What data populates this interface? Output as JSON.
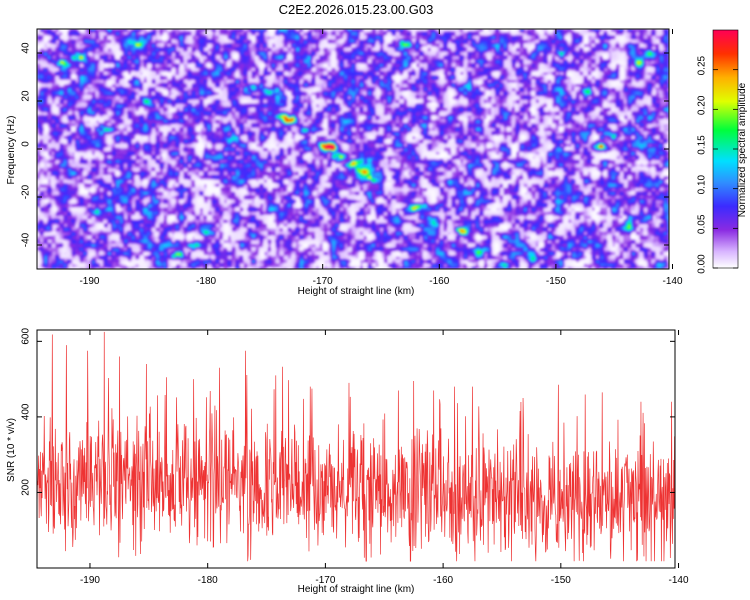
{
  "title": "C2E2.2026.015.23.00.G03",
  "chart_data": [
    {
      "type": "heatmap",
      "xlabel": "Height of straight line (km)",
      "ylabel": "Frequency (Hz)",
      "xlim": [
        -194.5,
        -140.3
      ],
      "ylim": [
        -50,
        50
      ],
      "xticks": [
        -190,
        -180,
        -170,
        -160,
        -150,
        -140
      ],
      "yticks": [
        -40,
        -20,
        0,
        20,
        40
      ],
      "colorbar": {
        "label": "Normalized spectral amplitude",
        "range": [
          0,
          0.3
        ],
        "ticks": [
          "0.00",
          "0.05",
          "0.10",
          "0.15",
          "0.20",
          "0.25"
        ]
      },
      "noise": {
        "floor": 0.03,
        "variation": 0.07
      },
      "features": [
        {
          "x": -192.5,
          "y": 36,
          "amp": 0.14
        },
        {
          "x": -191.0,
          "y": 38,
          "amp": 0.11
        },
        {
          "x": -188.5,
          "y": 8,
          "amp": 0.08
        },
        {
          "x": -186.0,
          "y": 44,
          "amp": 0.1
        },
        {
          "x": -185.0,
          "y": 20,
          "amp": 0.09
        },
        {
          "x": -184.0,
          "y": -48,
          "amp": 0.12
        },
        {
          "x": -182.5,
          "y": -44,
          "amp": 0.15
        },
        {
          "x": -181.0,
          "y": -40,
          "amp": 0.11
        },
        {
          "x": -180.0,
          "y": -34,
          "amp": 0.08
        },
        {
          "x": -178.0,
          "y": 4,
          "amp": 0.09
        },
        {
          "x": -176.0,
          "y": 26,
          "amp": 0.1
        },
        {
          "x": -174.5,
          "y": 24,
          "amp": 0.12
        },
        {
          "x": -173.5,
          "y": 14,
          "amp": 0.15
        },
        {
          "x": -172.8,
          "y": 12,
          "amp": 0.26
        },
        {
          "x": -171.5,
          "y": 8,
          "amp": 0.12
        },
        {
          "x": -170.0,
          "y": 2,
          "amp": 0.16
        },
        {
          "x": -169.3,
          "y": 1,
          "amp": 0.27
        },
        {
          "x": -168.5,
          "y": -3,
          "amp": 0.14
        },
        {
          "x": -167.5,
          "y": -6,
          "amp": 0.12
        },
        {
          "x": -166.5,
          "y": -9,
          "amp": 0.15
        },
        {
          "x": -165.8,
          "y": -12,
          "amp": 0.13
        },
        {
          "x": -166.0,
          "y": -4,
          "amp": 0.1
        },
        {
          "x": -162.0,
          "y": -24,
          "amp": 0.14
        },
        {
          "x": -160.5,
          "y": -30,
          "amp": 0.12
        },
        {
          "x": -158.0,
          "y": -34,
          "amp": 0.12
        },
        {
          "x": -156.5,
          "y": -42,
          "amp": 0.11
        },
        {
          "x": -154.5,
          "y": -48,
          "amp": 0.12
        },
        {
          "x": -152.0,
          "y": -46,
          "amp": 0.09
        },
        {
          "x": -147.5,
          "y": 24,
          "amp": 0.1
        },
        {
          "x": -146.3,
          "y": 1,
          "amp": 0.2
        },
        {
          "x": -145.0,
          "y": 6,
          "amp": 0.08
        },
        {
          "x": -143.0,
          "y": 36,
          "amp": 0.1
        },
        {
          "x": -142.0,
          "y": 40,
          "amp": 0.09
        },
        {
          "x": -149.5,
          "y": 40,
          "amp": 0.1
        },
        {
          "x": -163.0,
          "y": 44,
          "amp": 0.09
        },
        {
          "x": -158.0,
          "y": 26,
          "amp": 0.08
        },
        {
          "x": -189.5,
          "y": -26,
          "amp": 0.1
        },
        {
          "x": -176.0,
          "y": -36,
          "amp": 0.09
        },
        {
          "x": -141.0,
          "y": -48,
          "amp": 0.09
        },
        {
          "x": -144.0,
          "y": -32,
          "amp": 0.1
        }
      ]
    },
    {
      "type": "line",
      "xlabel": "Height of straight line (km)",
      "ylabel": "SNR (10 * v/v)",
      "xlim": [
        -194.5,
        -140.3
      ],
      "ylim": [
        0,
        630
      ],
      "xticks": [
        -190,
        -180,
        -170,
        -160,
        -150,
        -140
      ],
      "yticks": [
        200,
        400,
        600
      ],
      "series": [
        {
          "name": "SNR",
          "color": "#ee3333",
          "baseline": [
            {
              "x": -194.5,
              "y": 225
            },
            {
              "x": -185,
              "y": 240
            },
            {
              "x": -175,
              "y": 215
            },
            {
              "x": -165,
              "y": 205
            },
            {
              "x": -155,
              "y": 190
            },
            {
              "x": -145,
              "y": 180
            },
            {
              "x": -140.3,
              "y": 175
            }
          ],
          "spread": 75,
          "peaks": [
            {
              "x": -193.2,
              "y": 618
            },
            {
              "x": -192.0,
              "y": 590
            },
            {
              "x": -190.2,
              "y": 575
            },
            {
              "x": -188.8,
              "y": 625
            },
            {
              "x": -187.5,
              "y": 560
            },
            {
              "x": -185.2,
              "y": 540
            },
            {
              "x": -183.5,
              "y": 505
            },
            {
              "x": -181.2,
              "y": 500
            },
            {
              "x": -179.0,
              "y": 530
            },
            {
              "x": -176.8,
              "y": 575
            },
            {
              "x": -174.2,
              "y": 510
            },
            {
              "x": -171.3,
              "y": 480
            },
            {
              "x": -168.0,
              "y": 490
            },
            {
              "x": -163.8,
              "y": 470
            },
            {
              "x": -162.5,
              "y": 495
            },
            {
              "x": -160.8,
              "y": 470
            },
            {
              "x": -157.5,
              "y": 480
            },
            {
              "x": -153.2,
              "y": 450
            },
            {
              "x": -150.2,
              "y": 485
            },
            {
              "x": -146.5,
              "y": 465
            },
            {
              "x": -143.2,
              "y": 440
            },
            {
              "x": -140.6,
              "y": 440
            }
          ]
        }
      ]
    }
  ]
}
